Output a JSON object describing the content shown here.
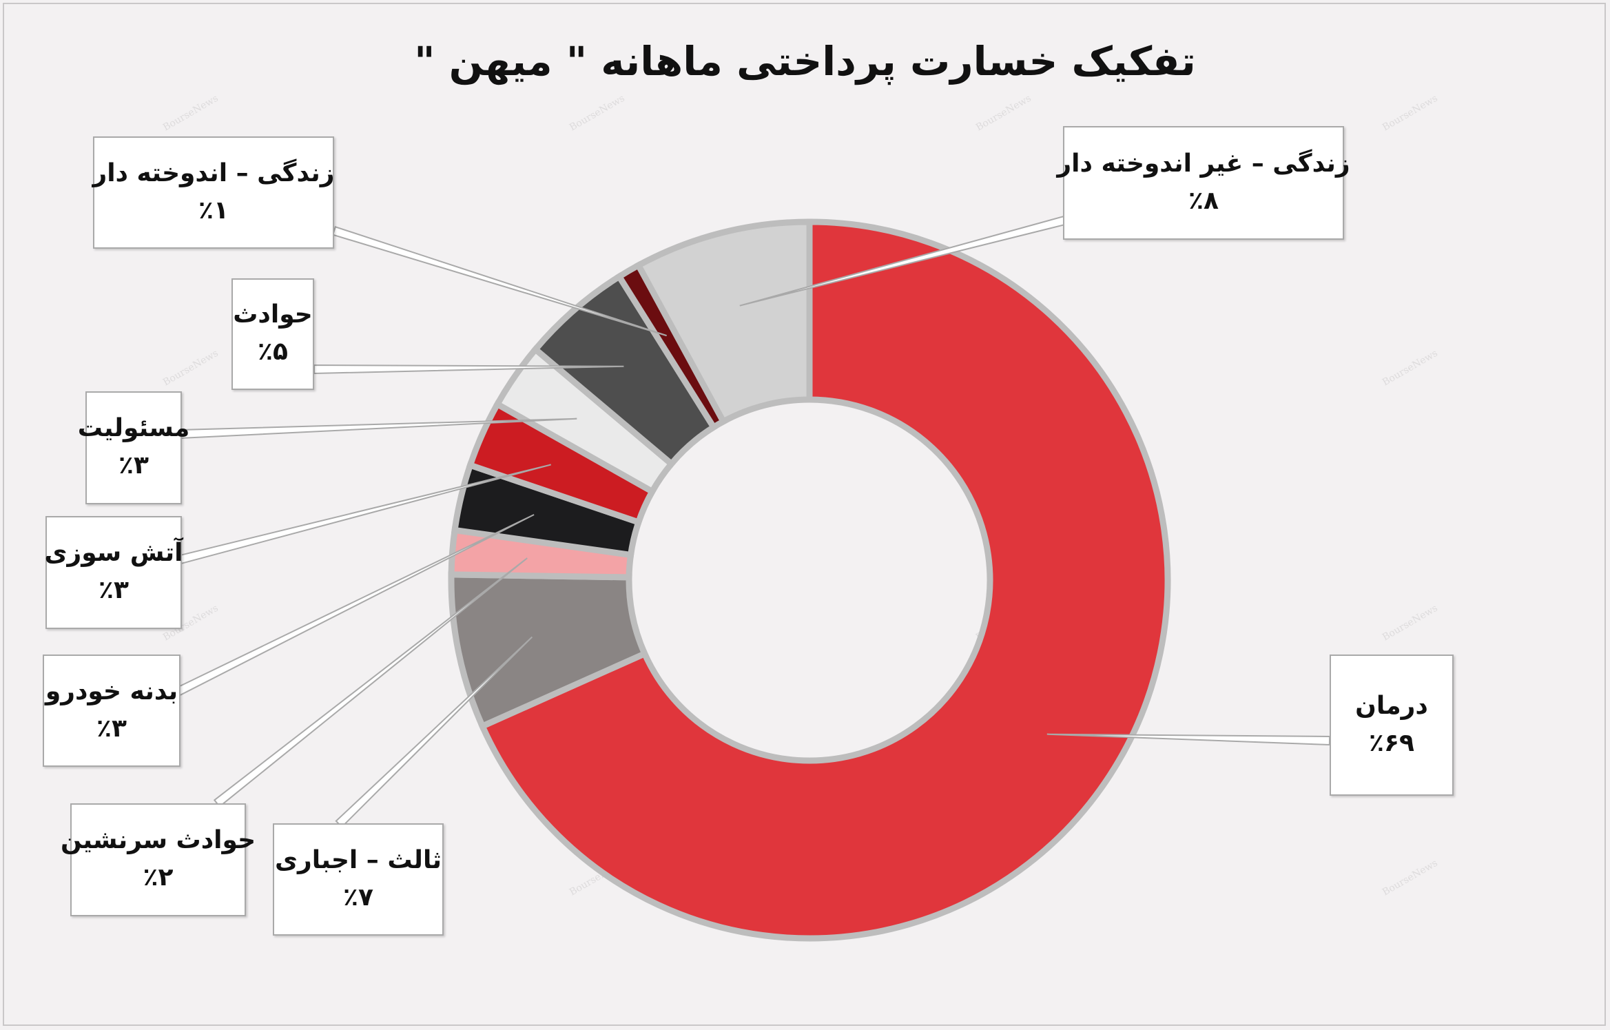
{
  "chart_data": {
    "type": "donut",
    "title": "تفکیک خسارت پرداختی ماهانه \" میهن \"",
    "categories": [
      "درمان",
      "ثالث – اجباری",
      "حوادث سرنشین",
      "بدنه خودرو",
      "آتش سوزی",
      "مسئولیت",
      "حوادث",
      "زندگی – اندوخته دار",
      "زندگی – غیر اندوخته دار"
    ],
    "values": [
      69,
      7,
      2,
      3,
      3,
      3,
      5,
      1,
      8
    ],
    "value_labels": [
      "٪۶۹",
      "٪۷",
      "٪۲",
      "٪۳",
      "٪۳",
      "٪۳",
      "٪۵",
      "٪۱",
      "٪۸"
    ],
    "colors": [
      "#e0363c",
      "#8a8584",
      "#f3a3a6",
      "#1c1c1e",
      "#cc1c22",
      "#eaeaea",
      "#4e4e4e",
      "#6b0d10",
      "#d2d2d2"
    ],
    "legend": "callouts"
  },
  "watermark": "BourseNews"
}
